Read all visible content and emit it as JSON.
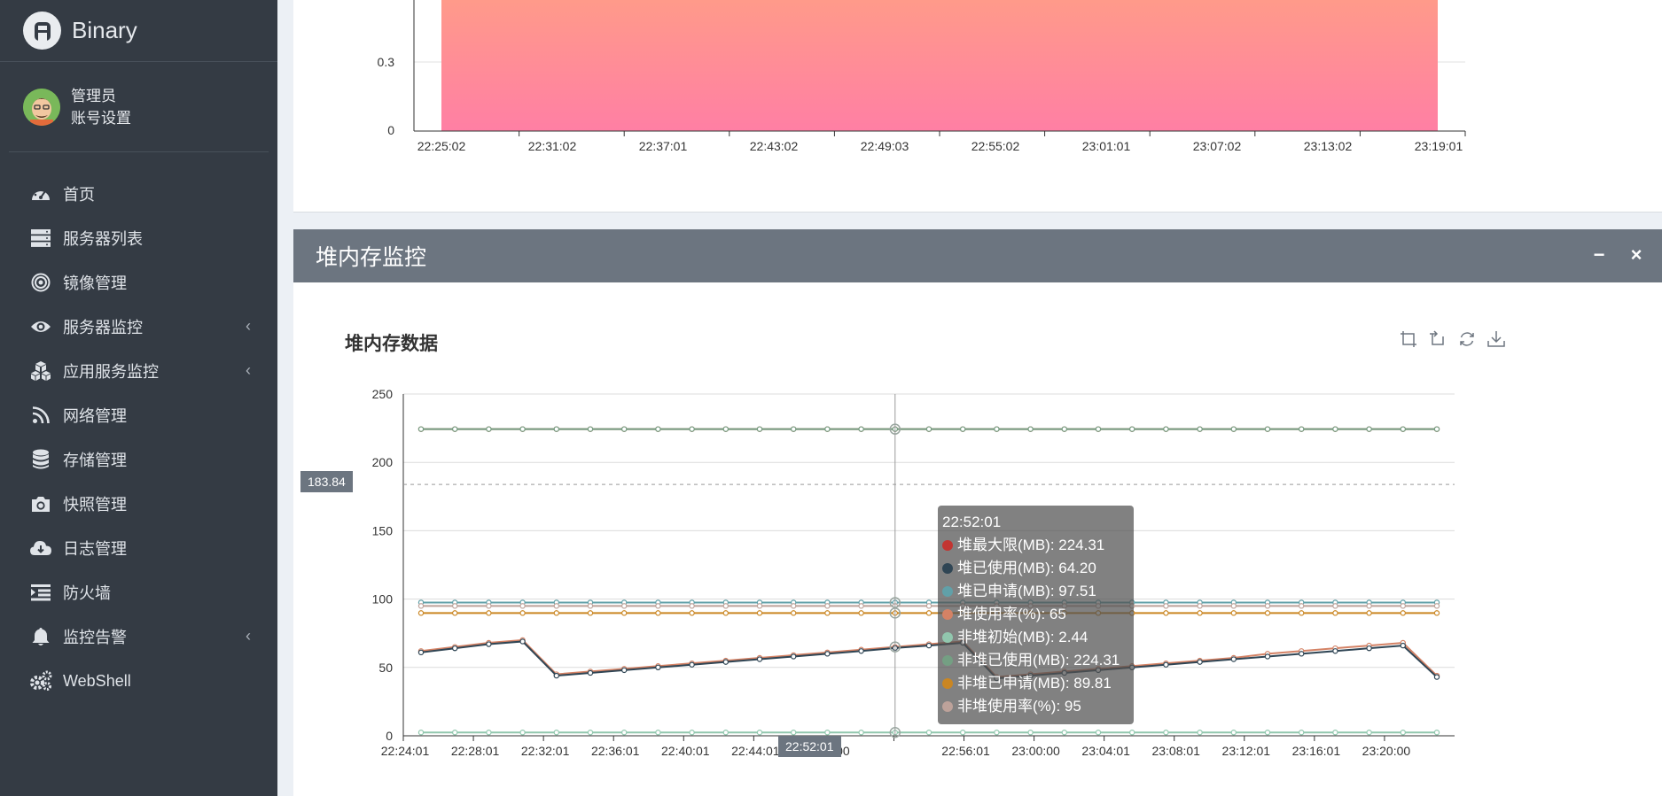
{
  "app": {
    "name": "Binary"
  },
  "user": {
    "name": "管理员",
    "settings_label": "账号设置"
  },
  "menu": [
    {
      "label": "首页",
      "icon": "dashboard-icon",
      "has_arrow": false
    },
    {
      "label": "服务器列表",
      "icon": "server-list-icon",
      "has_arrow": false
    },
    {
      "label": "镜像管理",
      "icon": "bullseye-icon",
      "has_arrow": false
    },
    {
      "label": "服务器监控",
      "icon": "eye-icon",
      "has_arrow": true
    },
    {
      "label": "应用服务监控",
      "icon": "cubes-icon",
      "has_arrow": true
    },
    {
      "label": "网络管理",
      "icon": "rss-icon",
      "has_arrow": false
    },
    {
      "label": "存储管理",
      "icon": "database-icon",
      "has_arrow": false
    },
    {
      "label": "快照管理",
      "icon": "camera-icon",
      "has_arrow": false
    },
    {
      "label": "日志管理",
      "icon": "cloud-download-icon",
      "has_arrow": false
    },
    {
      "label": "防火墙",
      "icon": "indent-icon",
      "has_arrow": false
    },
    {
      "label": "监控告警",
      "icon": "bell-icon",
      "has_arrow": true
    },
    {
      "label": "WebShell",
      "icon": "gears-icon",
      "has_arrow": false
    }
  ],
  "panel_top": {
    "y_ticks": [
      "0.3",
      "0"
    ],
    "x_ticks": [
      "22:25:02",
      "22:31:02",
      "22:37:01",
      "22:43:02",
      "22:49:03",
      "22:55:02",
      "23:01:01",
      "23:07:02",
      "23:13:02",
      "23:19:01"
    ]
  },
  "panel_heap": {
    "header": "堆内存监控",
    "minimize_label": "−",
    "close_label": "×",
    "chart_title": "堆内存数据",
    "y_pointer_label": "183.84",
    "x_pointer_label": "22:52:01",
    "tooltip": {
      "time": "22:52:01",
      "rows": [
        {
          "label": "堆最大限(MB): 224.31",
          "color": "#c23531"
        },
        {
          "label": "堆已使用(MB): 64.20",
          "color": "#2f4554"
        },
        {
          "label": "堆已申请(MB): 97.51",
          "color": "#61a0a8"
        },
        {
          "label": "堆使用率(%): 65",
          "color": "#d48265"
        },
        {
          "label": "非堆初始(MB): 2.44",
          "color": "#91c7ae"
        },
        {
          "label": "非堆已使用(MB): 224.31",
          "color": "#749f83"
        },
        {
          "label": "非堆已申请(MB): 89.81",
          "color": "#ca8622"
        },
        {
          "label": "非堆使用率(%): 95",
          "color": "#bda29a"
        }
      ]
    }
  },
  "chart_data": [
    {
      "type": "area",
      "x_ticks": [
        "22:25:02",
        "22:31:02",
        "22:37:01",
        "22:43:02",
        "22:49:03",
        "22:55:02",
        "23:01:01",
        "23:07:02",
        "23:13:02",
        "23:19:01"
      ],
      "y_ticks": [
        "0",
        "0.3"
      ],
      "grid": true
    },
    {
      "type": "line",
      "title": "堆内存数据",
      "ylim": [
        0,
        250
      ],
      "y_ticks": [
        0,
        50,
        100,
        150,
        200,
        250
      ],
      "x_ticks": [
        "22:24:01",
        "22:28:01",
        "22:32:01",
        "22:36:01",
        "22:40:01",
        "22:44:01",
        "22:48:00",
        "22:52:01",
        "22:56:01",
        "23:00:00",
        "23:04:01",
        "23:08:01",
        "23:12:01",
        "23:16:01",
        "23:20:00"
      ],
      "grid": true,
      "series": [
        {
          "name": "堆最大限(MB)",
          "color": "#c23531",
          "values": [
            224.31,
            224.31,
            224.31,
            224.31,
            224.31,
            224.31,
            224.31,
            224.31,
            224.31,
            224.31,
            224.31,
            224.31,
            224.31,
            224.31,
            224.31,
            224.31,
            224.31,
            224.31,
            224.31,
            224.31,
            224.31,
            224.31,
            224.31,
            224.31,
            224.31,
            224.31,
            224.31,
            224.31,
            224.31,
            224.31,
            224.31
          ]
        },
        {
          "name": "堆已使用(MB)",
          "color": "#2f4554",
          "values": [
            61,
            64,
            67,
            69,
            44,
            46,
            48,
            50,
            52,
            54,
            56,
            58,
            60,
            62,
            64.2,
            66,
            68,
            42,
            44,
            46,
            48,
            50,
            52,
            54,
            56,
            58,
            60,
            62,
            64,
            66,
            43
          ]
        },
        {
          "name": "堆已申请(MB)",
          "color": "#61a0a8",
          "values": [
            97.51,
            97.51,
            97.51,
            97.51,
            97.51,
            97.51,
            97.51,
            97.51,
            97.51,
            97.51,
            97.51,
            97.51,
            97.51,
            97.51,
            97.51,
            97.51,
            97.51,
            97.51,
            97.51,
            97.51,
            97.51,
            97.51,
            97.51,
            97.51,
            97.51,
            97.51,
            97.51,
            97.51,
            97.51,
            97.51,
            97.51
          ]
        },
        {
          "name": "堆使用率(%)",
          "color": "#d48265",
          "values": [
            62,
            65,
            68,
            70,
            45,
            47,
            49,
            51,
            53,
            55,
            57,
            59,
            61,
            63,
            65,
            67,
            69,
            43,
            45,
            47,
            49,
            51,
            53,
            55,
            57,
            60,
            62,
            64,
            66,
            68,
            44
          ]
        },
        {
          "name": "非堆初始(MB)",
          "color": "#91c7ae",
          "values": [
            2.44,
            2.44,
            2.44,
            2.44,
            2.44,
            2.44,
            2.44,
            2.44,
            2.44,
            2.44,
            2.44,
            2.44,
            2.44,
            2.44,
            2.44,
            2.44,
            2.44,
            2.44,
            2.44,
            2.44,
            2.44,
            2.44,
            2.44,
            2.44,
            2.44,
            2.44,
            2.44,
            2.44,
            2.44,
            2.44,
            2.44
          ]
        },
        {
          "name": "非堆已使用(MB)",
          "color": "#749f83",
          "values": [
            224.31,
            224.31,
            224.31,
            224.31,
            224.31,
            224.31,
            224.31,
            224.31,
            224.31,
            224.31,
            224.31,
            224.31,
            224.31,
            224.31,
            224.31,
            224.31,
            224.31,
            224.31,
            224.31,
            224.31,
            224.31,
            224.31,
            224.31,
            224.31,
            224.31,
            224.31,
            224.31,
            224.31,
            224.31,
            224.31,
            224.31
          ]
        },
        {
          "name": "非堆已申请(MB)",
          "color": "#ca8622",
          "values": [
            89.81,
            89.81,
            89.81,
            89.81,
            89.81,
            89.81,
            89.81,
            89.81,
            89.81,
            89.81,
            89.81,
            89.81,
            89.81,
            89.81,
            89.81,
            89.81,
            89.81,
            89.81,
            89.81,
            89.81,
            89.81,
            89.81,
            89.81,
            89.81,
            89.81,
            89.81,
            89.81,
            89.81,
            89.81,
            89.81,
            89.81
          ]
        },
        {
          "name": "非堆使用率(%)",
          "color": "#bda29a",
          "values": [
            95,
            95,
            95,
            95,
            95,
            95,
            95,
            95,
            95,
            95,
            95,
            95,
            95,
            95,
            95,
            95,
            95,
            95,
            95,
            95,
            95,
            95,
            95,
            95,
            95,
            95,
            95,
            95,
            95,
            95,
            95
          ]
        }
      ],
      "pointer_index": 14,
      "pointer_y": 183.84
    }
  ]
}
